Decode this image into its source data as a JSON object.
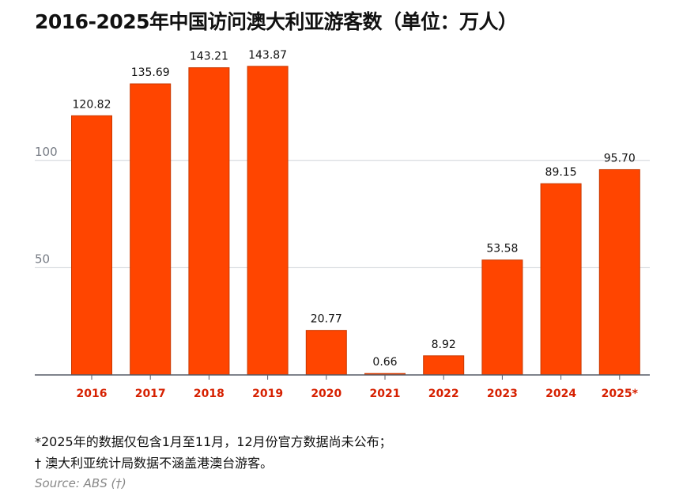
{
  "title": "2016-2025年中国访问澳大利亚游客数（单位：万人）",
  "notes": [
    "*2025年的数据仅包含1月至11月，12月份官方数据尚未公布；",
    "† 澳大利亚统计局数据不涵盖港澳台游客。"
  ],
  "source": "Source: ABS (†)",
  "colors": {
    "bar": "#ff4500",
    "bar_edge": "#c83800",
    "x_label": "#d62000",
    "grid": "#cfd3d8",
    "axis": "#555a66"
  },
  "chart_data": {
    "type": "bar",
    "categories": [
      "2016",
      "2017",
      "2018",
      "2019",
      "2020",
      "2021",
      "2022",
      "2023",
      "2024",
      "2025*"
    ],
    "values": [
      120.82,
      135.69,
      143.21,
      143.87,
      20.77,
      0.66,
      8.92,
      53.58,
      89.15,
      95.7
    ],
    "value_labels": [
      "120.82",
      "135.69",
      "143.21",
      "143.87",
      "20.77",
      "0.66",
      "8.92",
      "53.58",
      "89.15",
      "95.70"
    ],
    "yticks": [
      50,
      100
    ],
    "ylim": [
      0,
      150
    ],
    "grid": true,
    "legend": "none"
  }
}
